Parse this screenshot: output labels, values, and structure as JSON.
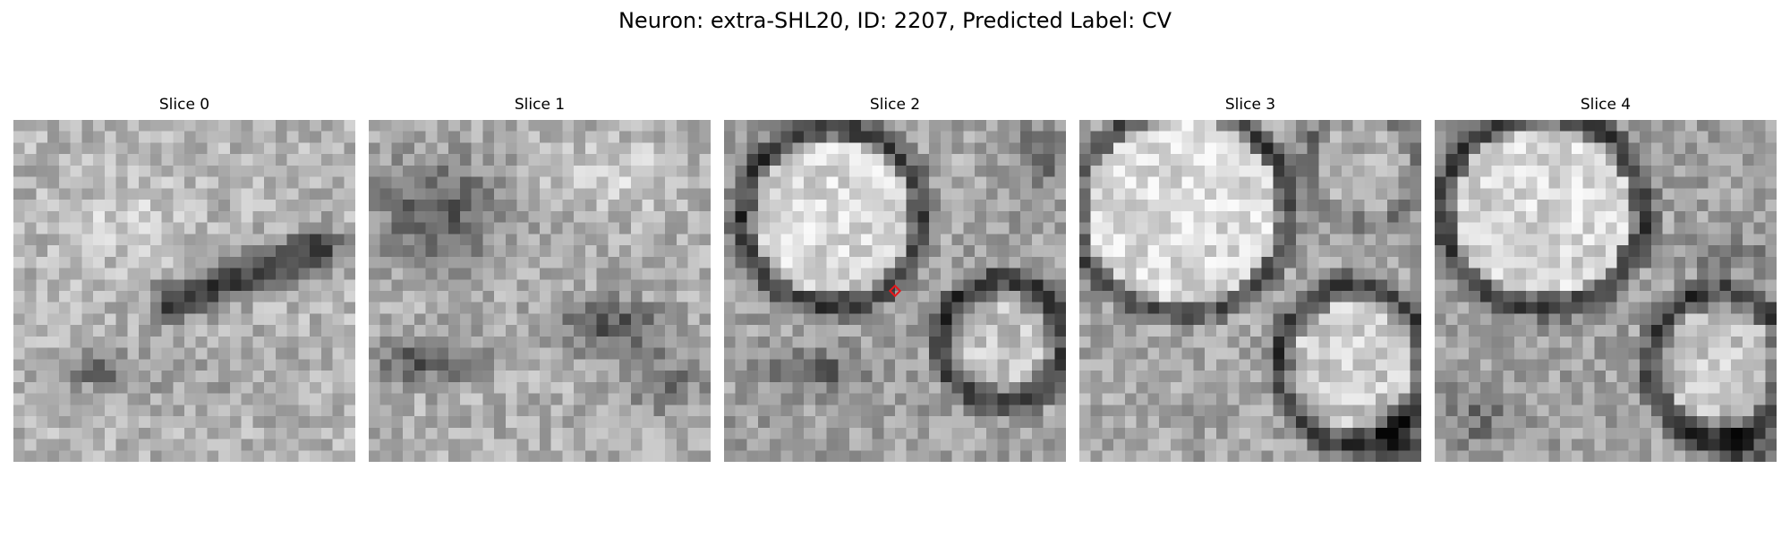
{
  "figure": {
    "title": "Neuron: extra-SHL20, ID: 2207, Predicted Label: CV",
    "marker_color": "#e8161b",
    "marker_slice": 2,
    "panels": [
      {
        "title": "Slice 0",
        "seed": 11
      },
      {
        "title": "Slice 1",
        "seed": 23
      },
      {
        "title": "Slice 2",
        "seed": 37
      },
      {
        "title": "Slice 3",
        "seed": 41
      },
      {
        "title": "Slice 4",
        "seed": 53
      }
    ]
  }
}
